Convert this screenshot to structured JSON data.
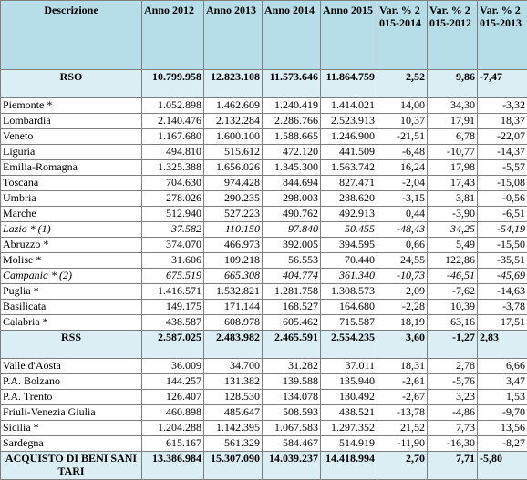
{
  "table": {
    "header": [
      "Descrizione",
      "Anno 2012",
      "Anno 2013",
      "Anno 2014",
      "Anno 2015",
      "Var. % 2015-2014",
      "Var. % 2015-2012",
      "Var. % 2015-2013"
    ],
    "rows": [
      [
        "RSO",
        "10.799.958",
        "12.823.108",
        "11.573.646",
        "11.864.759",
        "2,52",
        "9,86",
        "-7,47"
      ],
      [
        "Piemonte *",
        "1.052.898",
        "1.462.609",
        "1.240.419",
        "1.414.021",
        "14,00",
        "34,30",
        "-3,32"
      ],
      [
        "Lombardia",
        "2.140.476",
        "2.132.284",
        "2.286.766",
        "2.523.913",
        "10,37",
        "17,91",
        "18,37"
      ],
      [
        "Veneto",
        "1.167.680",
        "1.600.100",
        "1.588.665",
        "1.246.900",
        "-21,51",
        "6,78",
        "-22,07"
      ],
      [
        "Liguria",
        "494.810",
        "515.612",
        "472.120",
        "441.509",
        "-6,48",
        "-10,77",
        "-14,37"
      ],
      [
        "Emilia-Romagna",
        "1.325.388",
        "1.656.026",
        "1.345.300",
        "1.563.742",
        "16,24",
        "17,98",
        "-5,57"
      ],
      [
        "Toscana",
        "704.630",
        "974.428",
        "844.694",
        "827.471",
        "-2,04",
        "17,43",
        "-15,08"
      ],
      [
        "Umbria",
        "278.026",
        "290.235",
        "298.003",
        "288.620",
        "-3,15",
        "3,81",
        "-0,56"
      ],
      [
        "Marche",
        "512.940",
        "527.223",
        "490.762",
        "492.913",
        "0,44",
        "-3,90",
        "-6,51"
      ],
      [
        "Lazio * (1)",
        "37.582",
        "110.150",
        "97.840",
        "50.455",
        "-48,43",
        "34,25",
        "-54,19"
      ],
      [
        "Abruzzo *",
        "374.070",
        "466.973",
        "392.005",
        "394.595",
        "0,66",
        "5,49",
        "-15,50"
      ],
      [
        "Molise *",
        "31.606",
        "109.218",
        "56.553",
        "70.440",
        "24,55",
        "122,86",
        "-35,51"
      ],
      [
        "Campania * (2)",
        "675.519",
        "665.308",
        "404.774",
        "361.340",
        "-10,73",
        "-46,51",
        "-45,69"
      ],
      [
        "Puglia *",
        "1.416.571",
        "1.532.821",
        "1.281.758",
        "1.308.573",
        "2,09",
        "-7,62",
        "-14,63"
      ],
      [
        "Basilicata",
        "149.175",
        "171.144",
        "168.527",
        "164.680",
        "-2,28",
        "10,39",
        "-3,78"
      ],
      [
        "Calabria *",
        "438.587",
        "608.978",
        "605.462",
        "715.587",
        "18,19",
        "63,16",
        "17,51"
      ],
      [
        "RSS",
        "2.587.025",
        "2.483.982",
        "2.465.591",
        "2.554.235",
        "3,60",
        "-1,27",
        "2,83"
      ],
      [
        "Valle d'Aosta",
        "36.009",
        "34.700",
        "31.282",
        "37.011",
        "18,31",
        "2,78",
        "6,66"
      ],
      [
        "P.A. Bolzano",
        "144.257",
        "131.382",
        "139.588",
        "135.940",
        "-2,61",
        "-5,76",
        "3,47"
      ],
      [
        "P.A. Trento",
        "126.407",
        "128.530",
        "134.078",
        "130.492",
        "-2,67",
        "3,23",
        "1,53"
      ],
      [
        "Friuli-Venezia Giulia",
        "460.898",
        "485.647",
        "508.593",
        "438.521",
        "-13,78",
        "-4,86",
        "-9,70"
      ],
      [
        "Sicilia *",
        "1.204.288",
        "1.142.395",
        "1.067.583",
        "1.297.352",
        "21,52",
        "7,73",
        "13,56"
      ],
      [
        "Sardegna",
        "615.167",
        "561.329",
        "584.467",
        "514.919",
        "-11,90",
        "-16,30",
        "-8,27"
      ],
      [
        "ACQUISTO DI BENI SANITARI",
        "13.386.984",
        "15.307.090",
        "14.039.237",
        "14.418.994",
        "2,70",
        "7,71",
        "-5,80"
      ]
    ]
  }
}
